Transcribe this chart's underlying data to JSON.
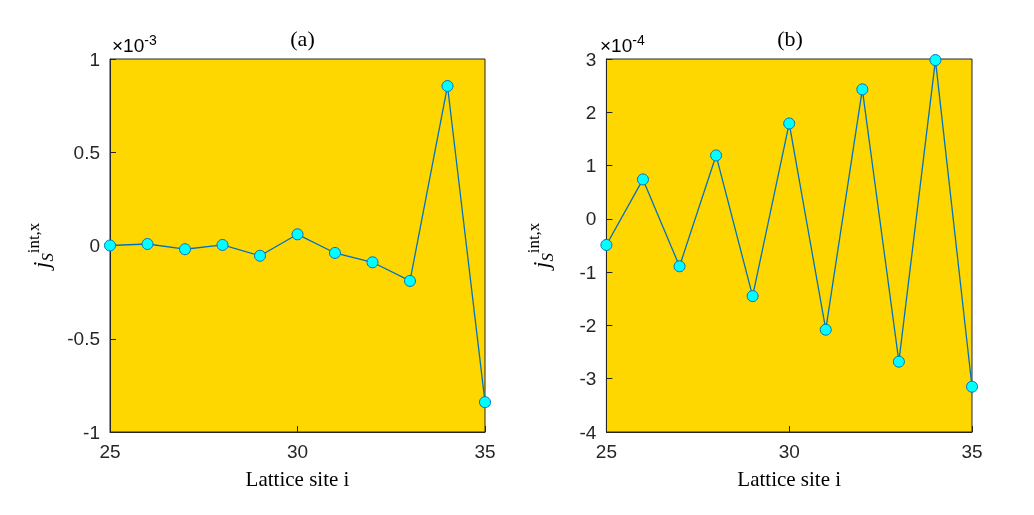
{
  "chart_data": [
    {
      "type": "line",
      "title": "(a)",
      "xlabel": "Lattice site i",
      "ylabel": "j$_{S}$$^{int,x}$",
      "annotations": [
        "×10$^{-3}$"
      ],
      "x": [
        25,
        26,
        27,
        28,
        29,
        30,
        31,
        32,
        33,
        34,
        35
      ],
      "series": [
        {
          "color": "#0072bd",
          "colors": [
            "#00ffff",
            "#00ffff",
            "#00ffff",
            "#00ffff",
            "#00ffff",
            "#00ffff",
            "#00ffff",
            "#00ffff",
            "#00ffff",
            "#00ffff",
            "#00ffff"
          ],
          "values": [
            0,
            0.008,
            -0.02,
            0.003,
            -0.055,
            0.06,
            -0.04,
            -0.09,
            -0.19,
            0.855,
            -0.84
          ]
        }
      ],
      "xlim": [
        25,
        35
      ],
      "xticks": [
        25,
        30,
        35
      ],
      "ylim": [
        -1,
        1
      ],
      "yticks": [
        -1,
        -0.5,
        0,
        0.5,
        1
      ],
      "grid": false,
      "marker": "circle",
      "line_style": "solid"
    },
    {
      "type": "line",
      "title": "(b)",
      "xlabel": "Lattice site i",
      "ylabel": "j$_{S}$$^{int,x}$",
      "annotations": [
        "×10$^{-4}$"
      ],
      "x": [
        25,
        26,
        27,
        28,
        29,
        30,
        31,
        32,
        33,
        34,
        35
      ],
      "series": [
        {
          "color": "#0072bd",
          "colors": [
            "#00ffff",
            "#00ffff",
            "#00ffff",
            "#00ffff",
            "#00ffff",
            "#00ffff",
            "#00ffff",
            "#00ffff",
            "#00ffff",
            "#00ffff",
            "#00ffff"
          ],
          "values": [
            -0.49,
            0.74,
            -0.89,
            1.19,
            -1.45,
            1.79,
            -2.08,
            2.43,
            -2.68,
            2.98,
            -3.15
          ]
        }
      ],
      "xlim": [
        25,
        35
      ],
      "xticks": [
        25,
        30,
        35
      ],
      "ylim": [
        -4,
        3
      ],
      "yticks": [
        -4,
        -3,
        -2,
        -1,
        0,
        1,
        2,
        3
      ],
      "grid": false,
      "marker": "circle",
      "line_style": "solid"
    }
  ]
}
